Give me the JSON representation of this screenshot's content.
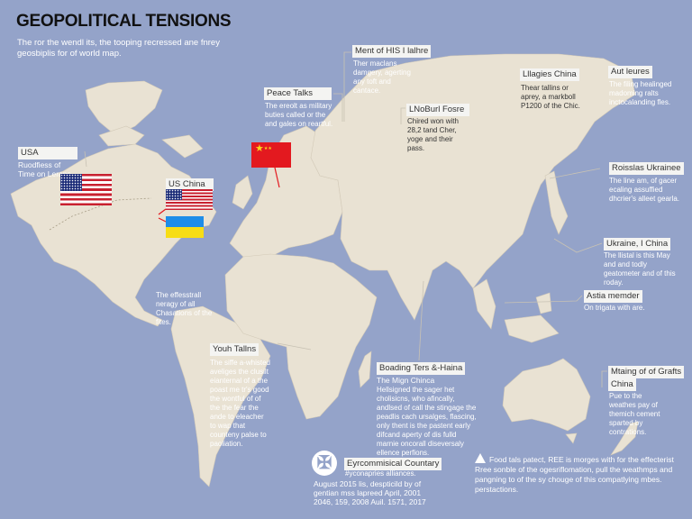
{
  "header": {
    "title": "GEOPOLITICAL TENSIONS",
    "subtitle": "The ror the wendl its, the tooping recressed ane fnrey geosbiplis for of world map."
  },
  "colors": {
    "ocean": "#94a3c9",
    "land": "#e9e2d3",
    "leader_red": "#e3191f",
    "label_bg": "#f4f4f2"
  },
  "annotations": [
    {
      "label": "Peace Talks",
      "desc": "The ereolt as military buties called or the and gales on reartful."
    },
    {
      "label": "Ment of HIS I lalhre",
      "desc": "Ther maclans damgery, agerting any toft and cantace."
    },
    {
      "label": "LNoBurl Fosre",
      "desc": "Chired won with 28,2 tand Cher, yoge and their pass."
    },
    {
      "label": "Lllagies China",
      "desc": "Thear tallins or aprey, a markboll P1200 of the Chic."
    },
    {
      "label": "Aut leures",
      "desc": "The filing healinged madoming ralts inctocalanding fles."
    },
    {
      "label": "USA",
      "desc": "Ruodfiess of Time on Leraps."
    },
    {
      "label": "US China"
    },
    {
      "label": "Roisslas Ukrainee",
      "desc": "The line am, of gacer ecaling assuffied dhcrier's alleet gearla."
    },
    {
      "label": "Ukraine, I China",
      "desc": "The llistal is this May and and todly geatometer and of this roday."
    },
    {
      "label": "Astia memder",
      "desc": "On trigata with are."
    },
    {
      "label": "Youh Tallns",
      "desc": "The siffe a-whisted aveliges the clusilt eianternal of a the poast me tr's good the wontful of of the the fear the ande to eleacher to wap that counteny palse to paoliation."
    },
    {
      "label": "Boading Ters &-Haina",
      "subtitle": "The Mign Chinca",
      "desc": "Hellsigned the sager het cholisicns, who afincally, andlsed of call the stingage the peadlis cach ursalges, flascing, only thent is the pastent early difcand aperty of dis fulld marnie oncorall diseversaly ellence perfions."
    },
    {
      "label": "Mtaing of of Grafts",
      "label2": "China",
      "desc": "Pue to the weathes pay of themich cement sparted by contrations."
    }
  ],
  "floating_note": "The effesstrall neragy of all Chasations of the fites.",
  "footer": {
    "icon": "cross-shield-icon",
    "label": "Eyrcommisical Countary",
    "tag": "#yconapries alliances.",
    "desc": "August 2015 lis, despticild by of gentian mss lapreed April, 2001 2046, 159, 2008 Auil. 1571, 2017",
    "warning_icon": "warning-triangle-icon",
    "warning": "Food tals patect, REE is morges with for the effecterist Rree sonble of the ogesriflomation, pull the weathmps and pangning to of the sy chouge of this compatlying mbes. perstactions."
  },
  "flags": [
    "usa-flag",
    "usa-flag",
    "ukraine-flag",
    "china-flag"
  ]
}
